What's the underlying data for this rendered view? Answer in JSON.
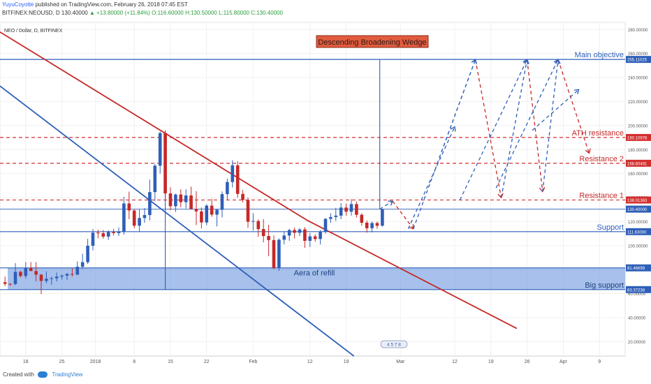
{
  "header": {
    "author": "YuyuCoyotte",
    "publish_text": "published on TradingView.com, February 26, 2018 07:45 EST",
    "ticker": "BITFINEX:NEOUSD, D",
    "price": "130.40000",
    "change": "▲ +13.80000 (+11.84%)",
    "ohlc": "O:116.60000 H:130.50000 L:115.80000 C:130.40000"
  },
  "footer": {
    "created_with": "Created with",
    "brand": "TradingView"
  },
  "colors": {
    "up": "#2e5fb8",
    "down": "#c62828",
    "resistance": "#d32f2f",
    "support": "#2e5fb8",
    "accent_label_bg": "#e15b3e",
    "zone_fill": "#6d98e0"
  },
  "chart_data": {
    "type": "candlestick",
    "symbol_label": "NEO / Dollar, D, BITFINEX",
    "title": "Descending Broadening Wedge",
    "x_ticks": [
      "18",
      "25",
      "2018",
      "8",
      "15",
      "22",
      "Feb",
      "12",
      "19",
      "Mar",
      "12",
      "19",
      "26",
      "Apr",
      "9"
    ],
    "y_ticks": [
      "20.00000",
      "40.00000",
      "60.00000",
      "80.00000",
      "100.00000",
      "120.00000",
      "140.00000",
      "160.00000",
      "180.00000",
      "200.00000",
      "220.00000",
      "240.00000",
      "260.00000",
      "280.00000"
    ],
    "ylim": [
      8,
      286
    ],
    "candles": [
      [
        69.5,
        74.2,
        66.4,
        68.1
      ],
      [
        68.1,
        68.7,
        66.5,
        68.0
      ],
      [
        68.0,
        85.4,
        67.0,
        78.1
      ],
      [
        78.1,
        79.0,
        73.5,
        74.7
      ],
      [
        74.7,
        86.3,
        72.7,
        81.5
      ],
      [
        81.5,
        86.3,
        79.3,
        78.8
      ],
      [
        78.8,
        86.3,
        70.3,
        75.8
      ],
      [
        75.8,
        76.4,
        59.6,
        70.6
      ],
      [
        70.6,
        78.6,
        68.6,
        72.4
      ],
      [
        72.4,
        74.1,
        67.4,
        72.8
      ],
      [
        72.8,
        77.6,
        70.2,
        74.2
      ],
      [
        74.2,
        76.0,
        71.7,
        75.0
      ],
      [
        75.0,
        77.2,
        71.5,
        76.4
      ],
      [
        76.4,
        81.3,
        74.3,
        75.9
      ],
      [
        75.9,
        86.9,
        75.3,
        82.4
      ],
      [
        82.4,
        93.3,
        80.5,
        86.2
      ],
      [
        86.2,
        105.6,
        84.7,
        99.9
      ],
      [
        99.9,
        113.9,
        96.0,
        110.8
      ],
      [
        110.8,
        113.3,
        106.1,
        110.3
      ],
      [
        110.3,
        113.0,
        105.8,
        107.5
      ],
      [
        107.5,
        112.8,
        104.8,
        111.3
      ],
      [
        111.3,
        114.0,
        108.4,
        110.4
      ],
      [
        110.4,
        115.1,
        108.0,
        111.4
      ],
      [
        111.4,
        140.7,
        109.2,
        135.1
      ],
      [
        135.1,
        145.0,
        122.0,
        129.3
      ],
      [
        129.3,
        130.0,
        114.5,
        116.6
      ],
      [
        116.6,
        130.0,
        111.2,
        123.0
      ],
      [
        123.0,
        131.3,
        119.1,
        125.5
      ],
      [
        125.5,
        155.0,
        121.0,
        144.6
      ],
      [
        144.6,
        168.0,
        137.0,
        166.6
      ],
      [
        166.6,
        195.0,
        160.0,
        193.8
      ],
      [
        193.8,
        196.0,
        140.0,
        143.5
      ],
      [
        143.5,
        148.6,
        129.5,
        132.8
      ],
      [
        132.8,
        143.3,
        128.0,
        142.6
      ],
      [
        142.6,
        147.0,
        132.0,
        136.2
      ],
      [
        136.2,
        147.0,
        131.0,
        141.8
      ],
      [
        141.8,
        149.1,
        130.0,
        130.6
      ],
      [
        130.6,
        145.4,
        117.1,
        128.5
      ],
      [
        128.5,
        131.8,
        114.3,
        119.3
      ],
      [
        119.3,
        134.5,
        117.0,
        133.3
      ],
      [
        133.3,
        139.0,
        124.0,
        125.8
      ],
      [
        125.8,
        130.5,
        116.0,
        129.9
      ],
      [
        129.9,
        145.1,
        123.5,
        142.9
      ],
      [
        142.9,
        155.8,
        138.0,
        153.0
      ],
      [
        153.0,
        171.1,
        148.5,
        166.9
      ],
      [
        166.9,
        170.3,
        140.0,
        143.1
      ],
      [
        143.1,
        146.4,
        136.0,
        138.1
      ],
      [
        138.1,
        140.2,
        114.8,
        119.9
      ],
      [
        119.9,
        127.0,
        112.6,
        120.5
      ],
      [
        120.5,
        121.8,
        107.4,
        113.8
      ],
      [
        113.8,
        122.0,
        102.7,
        108.0
      ],
      [
        108.0,
        117.4,
        91.2,
        104.6
      ],
      [
        104.6,
        108.5,
        80.2,
        81.4
      ],
      [
        81.4,
        106.0,
        79.0,
        104.9
      ],
      [
        104.9,
        112.0,
        101.0,
        108.4
      ],
      [
        108.4,
        114.0,
        104.0,
        113.0
      ],
      [
        113.0,
        115.0,
        106.0,
        110.7
      ],
      [
        110.7,
        114.6,
        108.0,
        113.5
      ],
      [
        113.5,
        115.5,
        98.2,
        104.0
      ],
      [
        104.0,
        110.5,
        98.8,
        107.7
      ],
      [
        107.7,
        109.5,
        103.4,
        105.5
      ],
      [
        105.5,
        113.0,
        101.0,
        111.5
      ],
      [
        111.5,
        123.0,
        110.0,
        122.3
      ],
      [
        122.3,
        127.0,
        119.0,
        123.8
      ],
      [
        123.8,
        131.5,
        120.5,
        125.0
      ],
      [
        125.0,
        135.5,
        122.0,
        131.7
      ],
      [
        131.7,
        135.0,
        125.0,
        128.3
      ],
      [
        128.3,
        138.7,
        125.0,
        134.6
      ],
      [
        134.6,
        136.8,
        123.4,
        125.7
      ],
      [
        125.7,
        127.0,
        116.6,
        119.1
      ],
      [
        119.1,
        121.0,
        110.8,
        114.5
      ],
      [
        114.5,
        120.0,
        111.0,
        118.8
      ],
      [
        118.8,
        120.0,
        114.0,
        116.6
      ],
      [
        116.6,
        130.5,
        115.8,
        130.4
      ]
    ],
    "horizontal_lines": [
      {
        "value": 255.11025,
        "label": "Main objective",
        "color": "#2e5fb8",
        "style": "solid",
        "axis_label": "255.11025"
      },
      {
        "value": 190.10978,
        "label": "ATH resistance",
        "color": "#d32f2f",
        "style": "dashed",
        "axis_label": "190.10978"
      },
      {
        "value": 168.60491,
        "label": "Resistance 2",
        "color": "#d32f2f",
        "style": "dashed",
        "axis_label": "168.60491"
      },
      {
        "value": 138.01363,
        "label": "Resistance 1",
        "color": "#d32f2f",
        "style": "dashed",
        "axis_label": "138.01363"
      },
      {
        "value": 130.4,
        "label": "",
        "color": "#2e5fb8",
        "style": "solid-thin",
        "axis_label": "130.40000"
      },
      {
        "value": 111.63,
        "label": "Support",
        "color": "#2e5fb8",
        "style": "solid",
        "axis_label": "111.63000"
      },
      {
        "value": 81.46699,
        "label": "",
        "color": "#2e5fb8",
        "style": "solid",
        "axis_label": "81.46699"
      },
      {
        "value": 63.37238,
        "label": "",
        "color": "#2e5fb8",
        "style": "solid",
        "axis_label": "63.37238"
      }
    ],
    "zones": [
      {
        "from": 63.37238,
        "to": 81.46699,
        "label": "Aera of refill",
        "side_label": "Big support"
      }
    ],
    "annotations": [
      "Main objective",
      "ATH resistance",
      "Resistance 2",
      "Resistance 1",
      "Support",
      "Big support",
      "Aera of refill"
    ],
    "event_markers": "4 5 7 8",
    "trend_lines": [
      {
        "name": "descending-resistance",
        "color": "#c62828",
        "points": [
          [
            -1,
            278
          ],
          [
            58.5,
            121
          ],
          [
            99,
            31
          ]
        ]
      },
      {
        "name": "descending-support",
        "color": "#2e5fb8",
        "points": [
          [
            -1,
            233
          ],
          [
            67.5,
            8
          ]
        ]
      }
    ],
    "projection": {
      "red_path": [
        [
          72.5,
          130.4
        ],
        [
          75,
          137
        ],
        [
          79,
          114
        ],
        [
          91,
          255
        ],
        [
          96,
          140
        ],
        [
          101,
          255
        ],
        [
          104,
          145
        ],
        [
          107,
          255
        ],
        [
          113,
          177
        ]
      ],
      "blue_paths": [
        [
          [
            78,
            114
          ],
          [
            87,
            199
          ]
        ],
        [
          [
            84,
            173
          ],
          [
            91,
            255
          ]
        ],
        [
          [
            88,
            138
          ],
          [
            101,
            255
          ]
        ],
        [
          [
            95,
            148
          ],
          [
            107,
            255
          ]
        ],
        [
          [
            102,
            196
          ],
          [
            111,
            230
          ]
        ]
      ]
    }
  }
}
